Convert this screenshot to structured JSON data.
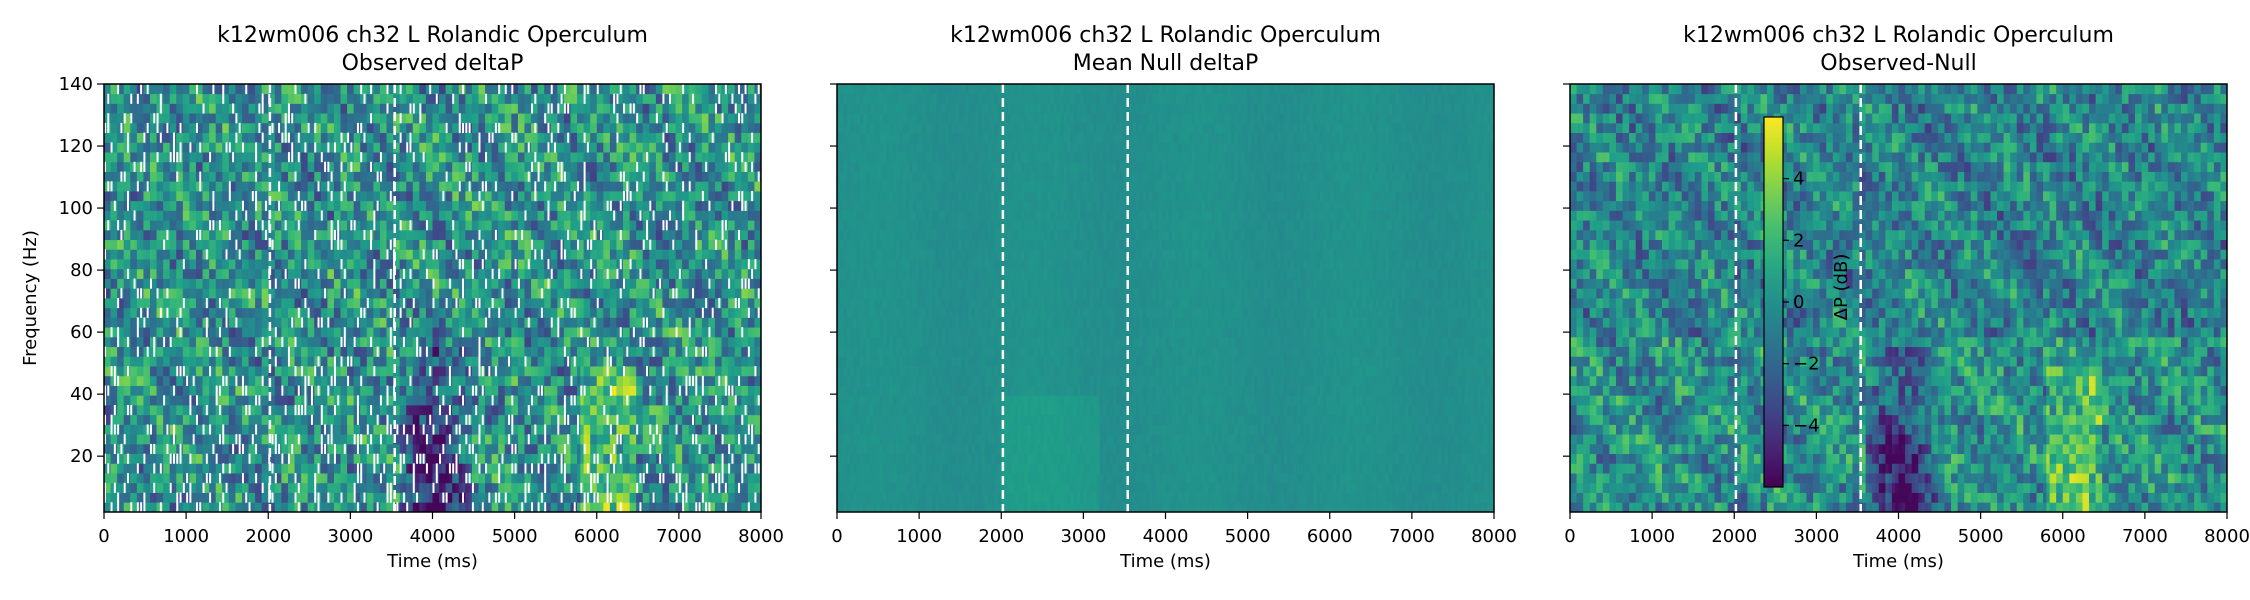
{
  "figure": {
    "colorbar": {
      "label": "ΔP (dB)",
      "ticks": [
        4,
        2,
        0,
        -2,
        -4
      ],
      "range": [
        -6,
        6
      ],
      "colormap": "viridis"
    }
  },
  "chart_data": [
    {
      "type": "heatmap",
      "title": "k12wm006 ch32 L Rolandic Operculum",
      "subtitle": "Observed deltaP",
      "xlabel": "Time (ms)",
      "ylabel": "Frequency (Hz)",
      "xlim": [
        0,
        8000
      ],
      "ylim": [
        2,
        140
      ],
      "xticks": [
        0,
        1000,
        2000,
        3000,
        4000,
        5000,
        6000,
        7000,
        8000
      ],
      "yticks": [
        20,
        40,
        60,
        80,
        100,
        120,
        140
      ],
      "event_lines_ms": [
        2020,
        3540
      ],
      "pattern": "observed",
      "notes_visible": "white gaps indicate masked values"
    },
    {
      "type": "heatmap",
      "title": "k12wm006 ch32 L Rolandic Operculum",
      "subtitle": "Mean Null deltaP",
      "xlabel": "Time (ms)",
      "ylabel": "",
      "xlim": [
        0,
        8000
      ],
      "ylim": [
        2,
        140
      ],
      "xticks": [
        0,
        1000,
        2000,
        3000,
        4000,
        5000,
        6000,
        7000,
        8000
      ],
      "yticks": [
        20,
        40,
        60,
        80,
        100,
        120,
        140
      ],
      "event_lines_ms": [
        2020,
        3540
      ],
      "pattern": "null"
    },
    {
      "type": "heatmap",
      "title": "k12wm006 ch32 L Rolandic Operculum",
      "subtitle": "Observed-Null",
      "xlabel": "Time (ms)",
      "ylabel": "",
      "xlim": [
        0,
        8000
      ],
      "ylim": [
        2,
        140
      ],
      "xticks": [
        0,
        1000,
        2000,
        3000,
        4000,
        5000,
        6000,
        7000,
        8000
      ],
      "yticks": [
        20,
        40,
        60,
        80,
        100,
        120,
        140
      ],
      "event_lines_ms": [
        2020,
        3540
      ],
      "pattern": "diff"
    }
  ]
}
